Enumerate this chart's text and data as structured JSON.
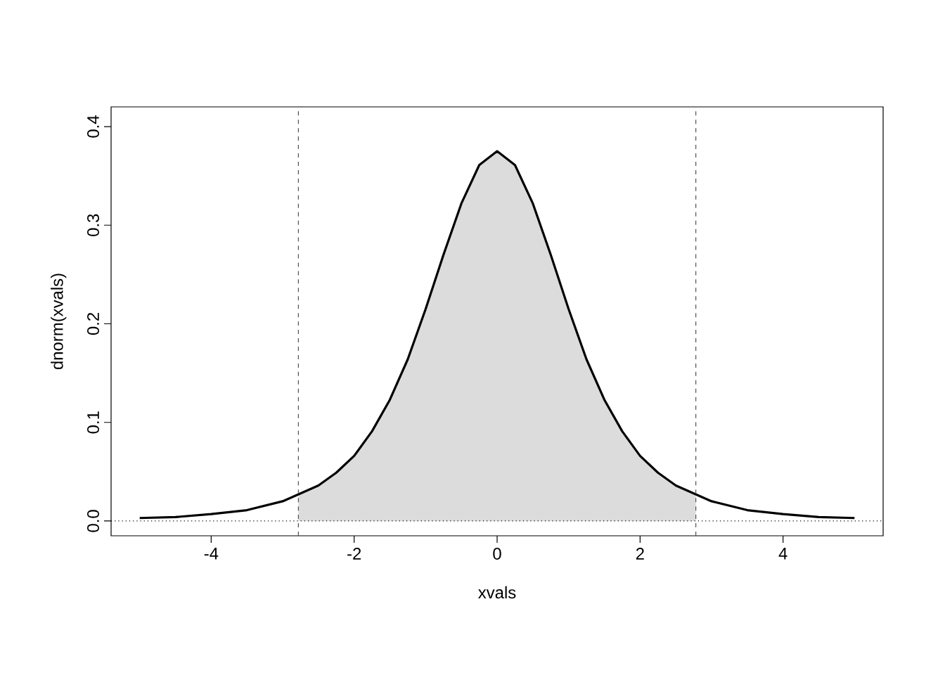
{
  "chart_data": {
    "type": "line",
    "xlabel": "xvals",
    "ylabel": "dnorm(xvals)",
    "xlim": [
      -5.4,
      5.4
    ],
    "ylim": [
      -0.015,
      0.42
    ],
    "xticks": [
      -4,
      -2,
      0,
      2,
      4
    ],
    "yticks": [
      {
        "value": 0,
        "label": "0.0"
      },
      0.1,
      0.2,
      0.3,
      0.4
    ],
    "grid": false,
    "series": [
      {
        "type": "area",
        "color": "#dcdcdc",
        "x": [
          -2.78,
          -2.5,
          -2.25,
          -2,
          -1.75,
          -1.5,
          -1.25,
          -1,
          -0.75,
          -0.5,
          -0.25,
          0,
          0.25,
          0.5,
          0.75,
          1,
          1.25,
          1.5,
          1.75,
          2,
          2.25,
          2.5,
          2.78
        ],
        "values": [
          0.026,
          0.036,
          0.049,
          0.066,
          0.091,
          0.123,
          0.164,
          0.215,
          0.27,
          0.322,
          0.361,
          0.375,
          0.361,
          0.322,
          0.27,
          0.215,
          0.164,
          0.123,
          0.091,
          0.066,
          0.049,
          0.036,
          0.026
        ]
      },
      {
        "color": "#000000",
        "x": [
          -5,
          -4.5,
          -4,
          -3.5,
          -3,
          -2.5,
          -2.25,
          -2,
          -1.75,
          -1.5,
          -1.25,
          -1,
          -0.75,
          -0.5,
          -0.25,
          0,
          0.25,
          0.5,
          0.75,
          1,
          1.25,
          1.5,
          1.75,
          2,
          2.25,
          2.5,
          3,
          3.5,
          4,
          4.5,
          5
        ],
        "values": [
          0.003,
          0.004,
          0.007,
          0.011,
          0.02,
          0.036,
          0.049,
          0.066,
          0.091,
          0.123,
          0.164,
          0.215,
          0.27,
          0.322,
          0.361,
          0.375,
          0.361,
          0.322,
          0.27,
          0.215,
          0.164,
          0.123,
          0.091,
          0.066,
          0.049,
          0.036,
          0.02,
          0.011,
          0.007,
          0.004,
          0.003
        ]
      }
    ],
    "ref_lines": [
      {
        "axis": "x",
        "value": -2.78,
        "color": "#505050",
        "line_style": "dashed"
      },
      {
        "axis": "x",
        "value": 2.78,
        "color": "#505050",
        "line_style": "dashed"
      },
      {
        "axis": "y",
        "value": 0,
        "color": "#000000",
        "line_style": "dotted"
      }
    ]
  }
}
